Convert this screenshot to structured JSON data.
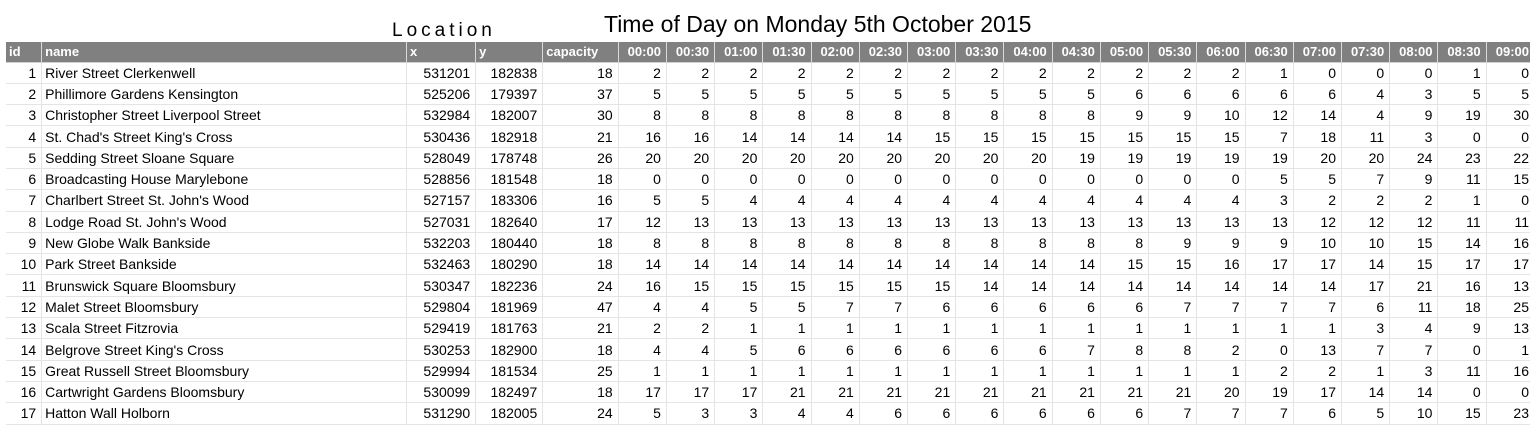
{
  "captions": {
    "location": "Location",
    "time_of_day": "Time of Day on Monday 5th October 2015"
  },
  "colors": {
    "header_background": "#808080",
    "header_text": "#ffffff",
    "grid_line": "#e4e4e4"
  },
  "columns": [
    {
      "label": "id",
      "align": "left"
    },
    {
      "label": "name",
      "align": "left"
    },
    {
      "label": "x",
      "align": "left"
    },
    {
      "label": "y",
      "align": "left"
    },
    {
      "label": "capacity",
      "align": "left"
    },
    {
      "label": "00:00",
      "align": "right"
    },
    {
      "label": "00:30",
      "align": "right"
    },
    {
      "label": "01:00",
      "align": "right"
    },
    {
      "label": "01:30",
      "align": "right"
    },
    {
      "label": "02:00",
      "align": "right"
    },
    {
      "label": "02:30",
      "align": "right"
    },
    {
      "label": "03:00",
      "align": "right"
    },
    {
      "label": "03:30",
      "align": "right"
    },
    {
      "label": "04:00",
      "align": "right"
    },
    {
      "label": "04:30",
      "align": "right"
    },
    {
      "label": "05:00",
      "align": "right"
    },
    {
      "label": "05:30",
      "align": "right"
    },
    {
      "label": "06:00",
      "align": "right"
    },
    {
      "label": "06:30",
      "align": "right"
    },
    {
      "label": "07:00",
      "align": "right"
    },
    {
      "label": "07:30",
      "align": "right"
    },
    {
      "label": "08:00",
      "align": "right"
    },
    {
      "label": "08:30",
      "align": "right"
    },
    {
      "label": "09:00",
      "align": "right"
    }
  ],
  "rows": [
    [
      "1",
      "River Street  Clerkenwell",
      "531201",
      "182838",
      "18",
      "2",
      "2",
      "2",
      "2",
      "2",
      "2",
      "2",
      "2",
      "2",
      "2",
      "2",
      "2",
      "2",
      "1",
      "0",
      "0",
      "0",
      "1",
      "0"
    ],
    [
      "2",
      "Phillimore Gardens Kensington",
      "525206",
      "179397",
      "37",
      "5",
      "5",
      "5",
      "5",
      "5",
      "5",
      "5",
      "5",
      "5",
      "5",
      "6",
      "6",
      "6",
      "6",
      "6",
      "4",
      "3",
      "5",
      "5"
    ],
    [
      "3",
      "Christopher Street Liverpool Street",
      "532984",
      "182007",
      "30",
      "8",
      "8",
      "8",
      "8",
      "8",
      "8",
      "8",
      "8",
      "8",
      "8",
      "9",
      "9",
      "10",
      "12",
      "14",
      "4",
      "9",
      "19",
      "30"
    ],
    [
      "4",
      "St. Chad's Street King's Cross",
      "530436",
      "182918",
      "21",
      "16",
      "16",
      "14",
      "14",
      "14",
      "14",
      "15",
      "15",
      "15",
      "15",
      "15",
      "15",
      "15",
      "7",
      "18",
      "11",
      "3",
      "0",
      "0"
    ],
    [
      "5",
      "Sedding Street Sloane Square",
      "528049",
      "178748",
      "26",
      "20",
      "20",
      "20",
      "20",
      "20",
      "20",
      "20",
      "20",
      "20",
      "19",
      "19",
      "19",
      "19",
      "19",
      "20",
      "20",
      "24",
      "23",
      "22"
    ],
    [
      "6",
      "Broadcasting House Marylebone",
      "528856",
      "181548",
      "18",
      "0",
      "0",
      "0",
      "0",
      "0",
      "0",
      "0",
      "0",
      "0",
      "0",
      "0",
      "0",
      "0",
      "5",
      "5",
      "7",
      "9",
      "11",
      "15"
    ],
    [
      "7",
      "Charlbert Street St. John's Wood",
      "527157",
      "183306",
      "16",
      "5",
      "5",
      "4",
      "4",
      "4",
      "4",
      "4",
      "4",
      "4",
      "4",
      "4",
      "4",
      "4",
      "3",
      "2",
      "2",
      "2",
      "1",
      "0"
    ],
    [
      "8",
      "Lodge Road St. John's Wood",
      "527031",
      "182640",
      "17",
      "12",
      "13",
      "13",
      "13",
      "13",
      "13",
      "13",
      "13",
      "13",
      "13",
      "13",
      "13",
      "13",
      "13",
      "12",
      "12",
      "12",
      "11",
      "11"
    ],
    [
      "9",
      "New Globe Walk Bankside",
      "532203",
      "180440",
      "18",
      "8",
      "8",
      "8",
      "8",
      "8",
      "8",
      "8",
      "8",
      "8",
      "8",
      "8",
      "9",
      "9",
      "9",
      "10",
      "10",
      "15",
      "14",
      "16"
    ],
    [
      "10",
      "Park Street Bankside",
      "532463",
      "180290",
      "18",
      "14",
      "14",
      "14",
      "14",
      "14",
      "14",
      "14",
      "14",
      "14",
      "14",
      "15",
      "15",
      "16",
      "17",
      "17",
      "14",
      "15",
      "17",
      "17"
    ],
    [
      "11",
      "Brunswick Square Bloomsbury",
      "530347",
      "182236",
      "24",
      "16",
      "15",
      "15",
      "15",
      "15",
      "15",
      "15",
      "14",
      "14",
      "14",
      "14",
      "14",
      "14",
      "14",
      "14",
      "17",
      "21",
      "16",
      "13"
    ],
    [
      "12",
      "Malet Street Bloomsbury",
      "529804",
      "181969",
      "47",
      "4",
      "4",
      "5",
      "5",
      "7",
      "7",
      "6",
      "6",
      "6",
      "6",
      "6",
      "7",
      "7",
      "7",
      "7",
      "6",
      "11",
      "18",
      "25"
    ],
    [
      "13",
      "Scala Street Fitzrovia",
      "529419",
      "181763",
      "21",
      "2",
      "2",
      "1",
      "1",
      "1",
      "1",
      "1",
      "1",
      "1",
      "1",
      "1",
      "1",
      "1",
      "1",
      "1",
      "3",
      "4",
      "9",
      "13"
    ],
    [
      "14",
      "Belgrove Street  King's Cross",
      "530253",
      "182900",
      "18",
      "4",
      "4",
      "5",
      "6",
      "6",
      "6",
      "6",
      "6",
      "6",
      "7",
      "8",
      "8",
      "2",
      "0",
      "13",
      "7",
      "7",
      "0",
      "1"
    ],
    [
      "15",
      "Great Russell Street Bloomsbury",
      "529994",
      "181534",
      "25",
      "1",
      "1",
      "1",
      "1",
      "1",
      "1",
      "1",
      "1",
      "1",
      "1",
      "1",
      "1",
      "1",
      "2",
      "2",
      "1",
      "3",
      "11",
      "16"
    ],
    [
      "16",
      "Cartwright Gardens  Bloomsbury",
      "530099",
      "182497",
      "18",
      "17",
      "17",
      "17",
      "21",
      "21",
      "21",
      "21",
      "21",
      "21",
      "21",
      "21",
      "21",
      "20",
      "19",
      "17",
      "14",
      "14",
      "0",
      "0"
    ],
    [
      "17",
      "Hatton Wall Holborn",
      "531290",
      "182005",
      "24",
      "5",
      "3",
      "3",
      "4",
      "4",
      "6",
      "6",
      "6",
      "6",
      "6",
      "6",
      "7",
      "7",
      "7",
      "6",
      "5",
      "10",
      "15",
      "23"
    ]
  ]
}
